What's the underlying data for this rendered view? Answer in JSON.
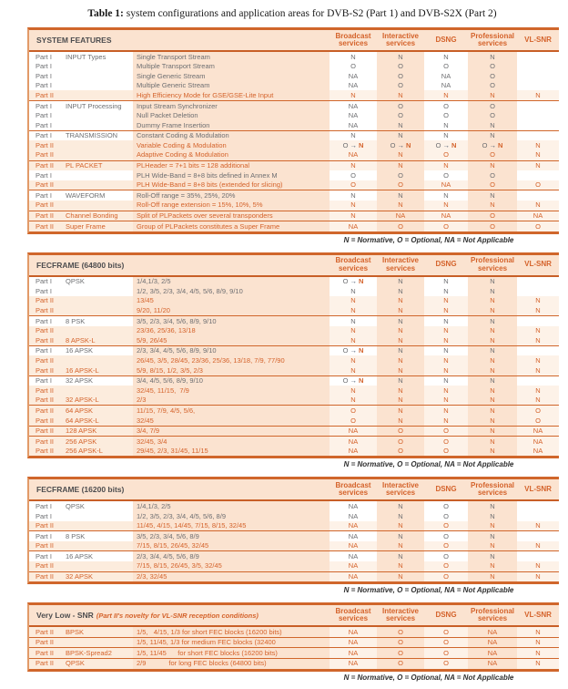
{
  "title": {
    "prefix": "Table 1:",
    "rest": " system configurations and application areas for DVB-S2 (Part 1) and DVB-S2X (Part 2)"
  },
  "legend_note": "N = Normative, O = Optional, NA = Not Applicable",
  "columns": [
    "Broadcast services",
    "Interactive services",
    "DSNG",
    "Professional services",
    "VL-SNR"
  ],
  "column_stripes": [
    false,
    true,
    false,
    true,
    false
  ],
  "colors": {
    "accent_orange": "#d4622a",
    "border_orange": "#d0662b",
    "peach_bg": "#fbe3d0",
    "part1_text_gray": "#6d6e71",
    "arrow_dark": "#44546a"
  },
  "tables": [
    {
      "title": "SYSTEM FEATURES",
      "title_note": "",
      "rows": [
        {
          "part": "Part I",
          "cat": "INPUT Types",
          "desc": "Single Transport Stream",
          "vals": [
            "N",
            "N",
            "N",
            "N",
            ""
          ],
          "sep": false
        },
        {
          "part": "Part I",
          "cat": "",
          "desc": "Multiple Transport Stream",
          "vals": [
            "O",
            "O",
            "O",
            "O",
            ""
          ],
          "sep": false
        },
        {
          "part": "Part I",
          "cat": "",
          "desc": "Single Generic Stream",
          "vals": [
            "NA",
            "O",
            "NA",
            "O",
            ""
          ],
          "sep": false
        },
        {
          "part": "Part I",
          "cat": "",
          "desc": "Multiple Generic Stream",
          "vals": [
            "NA",
            "O",
            "NA",
            "O",
            ""
          ],
          "sep": false
        },
        {
          "part": "Part II",
          "cat": "",
          "desc": "High Efficiency Mode for GSE/GSE-Lite Input",
          "vals": [
            "N",
            "N",
            "N",
            "N",
            "N"
          ],
          "sep": true
        },
        {
          "part": "Part I",
          "cat": "INPUT Processing",
          "desc": "Input Stream Synchronizer",
          "vals": [
            "NA",
            "O",
            "O",
            "O",
            ""
          ],
          "sep": false
        },
        {
          "part": "Part I",
          "cat": "",
          "desc": "Null Packet Deletion",
          "vals": [
            "NA",
            "O",
            "O",
            "O",
            ""
          ],
          "sep": false
        },
        {
          "part": "Part I",
          "cat": "",
          "desc": "Dummy Frame Insertion",
          "vals": [
            "NA",
            "N",
            "N",
            "N",
            ""
          ],
          "sep": true
        },
        {
          "part": "Part I",
          "cat": "TRANSMISSION",
          "desc": "Constant Coding & Modulation",
          "vals": [
            "N",
            "N",
            "N",
            "N",
            ""
          ],
          "sep": false
        },
        {
          "part": "Part II",
          "cat": "",
          "desc": "Variable Coding & Modulation",
          "vals": [
            "O → N",
            "O → N",
            "O → N",
            "O → N",
            "N"
          ],
          "sep": false
        },
        {
          "part": "Part II",
          "cat": "",
          "desc": "Adaptive Coding & Modulation",
          "vals": [
            "NA",
            "N",
            "O",
            "O",
            "N"
          ],
          "sep": true
        },
        {
          "part": "Part II",
          "cat": "PL PACKET",
          "desc": "PLHeader = 7+1 bits = 128 additional",
          "vals": [
            "N",
            "N",
            "N",
            "N",
            "N"
          ],
          "sep": false
        },
        {
          "part": "Part I",
          "cat": "",
          "desc": "PLH Wide-Band = 8+8 bits defined in Annex M",
          "vals": [
            "O",
            "O",
            "O",
            "O",
            ""
          ],
          "sep": false
        },
        {
          "part": "Part II",
          "cat": "",
          "desc": "PLH Wide-Band = 8+8 bits (extended for slicing)",
          "vals": [
            "O",
            "O",
            "NA",
            "O",
            "O"
          ],
          "sep": true
        },
        {
          "part": "Part I",
          "cat": "WAVEFORM",
          "desc": "Roll-Off range = 35%, 25%, 20%",
          "vals": [
            "N",
            "N",
            "N",
            "N",
            ""
          ],
          "sep": false
        },
        {
          "part": "Part II",
          "cat": "",
          "desc": "Roll-Off range extension = 15%, 10%, 5%",
          "vals": [
            "N",
            "N",
            "N",
            "N",
            "N"
          ],
          "sep": true
        },
        {
          "part": "Part II",
          "cat": "Channel Bonding",
          "desc": "Split of PLPackets over several transponders",
          "vals": [
            "N",
            "NA",
            "NA",
            "O",
            "NA"
          ],
          "sep": true
        },
        {
          "part": "Part II",
          "cat": "Super Frame",
          "desc": "Group of PLPackets constitutes a Super Frame",
          "vals": [
            "NA",
            "O",
            "O",
            "O",
            "O"
          ],
          "sep": false
        }
      ]
    },
    {
      "title": "FECFRAME (64800 bits)",
      "title_note": "",
      "rows": [
        {
          "part": "Part I",
          "cat": "QPSK",
          "desc": "1/4,1/3, 2/5",
          "vals": [
            "O → N",
            "N",
            "N",
            "N",
            ""
          ],
          "sep": false
        },
        {
          "part": "Part I",
          "cat": "",
          "desc": "1/2, 3/5, 2/3, 3/4, 4/5, 5/6, 8/9, 9/10",
          "vals": [
            "N",
            "N",
            "N",
            "N",
            ""
          ],
          "sep": false
        },
        {
          "part": "Part II",
          "cat": "",
          "desc": "13/45",
          "vals": [
            "N",
            "N",
            "N",
            "N",
            "N"
          ],
          "sep": false
        },
        {
          "part": "Part II",
          "cat": "",
          "desc": "9/20, 11/20",
          "vals": [
            "N",
            "N",
            "N",
            "N",
            "N"
          ],
          "sep": true
        },
        {
          "part": "Part I",
          "cat": "8 PSK",
          "desc": "3/5, 2/3, 3/4, 5/6, 8/9, 9/10",
          "vals": [
            "N",
            "N",
            "N",
            "N",
            ""
          ],
          "sep": false
        },
        {
          "part": "Part II",
          "cat": "",
          "desc": "23/36, 25/36, 13/18",
          "vals": [
            "N",
            "N",
            "N",
            "N",
            "N"
          ],
          "sep": false
        },
        {
          "part": "Part II",
          "cat": "8 APSK-L",
          "desc": "5/9, 26/45",
          "vals": [
            "N",
            "N",
            "N",
            "N",
            "N"
          ],
          "sep": true
        },
        {
          "part": "Part I",
          "cat": "16 APSK",
          "desc": "2/3, 3/4, 4/5, 5/6, 8/9, 9/10",
          "vals": [
            "O → N",
            "N",
            "N",
            "N",
            ""
          ],
          "sep": false
        },
        {
          "part": "Part II",
          "cat": "",
          "desc": "26/45, 3/5, 28/45, 23/36, 25/36, 13/18, 7/9, 77/90",
          "vals": [
            "N",
            "N",
            "N",
            "N",
            "N"
          ],
          "sep": false
        },
        {
          "part": "Part II",
          "cat": "16 APSK-L",
          "desc": "5/9, 8/15, 1/2, 3/5, 2/3",
          "vals": [
            "N",
            "N",
            "N",
            "N",
            "N"
          ],
          "sep": true
        },
        {
          "part": "Part I",
          "cat": "32 APSK",
          "desc": "3/4, 4/5, 5/6, 8/9, 9/10",
          "vals": [
            "O → N",
            "N",
            "N",
            "N",
            ""
          ],
          "sep": false
        },
        {
          "part": "Part II",
          "cat": "",
          "desc": "32/45, 11/15,  7/9",
          "vals": [
            "N",
            "N",
            "N",
            "N",
            "N"
          ],
          "sep": false
        },
        {
          "part": "Part II",
          "cat": "32 APSK-L",
          "desc": "2/3",
          "vals": [
            "N",
            "N",
            "N",
            "N",
            "N"
          ],
          "sep": true
        },
        {
          "part": "Part II",
          "cat": "64 APSK",
          "desc": "11/15, 7/9, 4/5, 5/6,",
          "vals": [
            "O",
            "N",
            "N",
            "N",
            "O"
          ],
          "sep": false
        },
        {
          "part": "Part II",
          "cat": "64 APSK-L",
          "desc": "32/45",
          "vals": [
            "O",
            "N",
            "N",
            "N",
            "O"
          ],
          "sep": true
        },
        {
          "part": "Part II",
          "cat": "128 APSK",
          "desc": "3/4, 7/9",
          "vals": [
            "NA",
            "O",
            "O",
            "N",
            "NA"
          ],
          "sep": true
        },
        {
          "part": "Part II",
          "cat": "256 APSK",
          "desc": "32/45, 3/4",
          "vals": [
            "NA",
            "O",
            "O",
            "N",
            "NA"
          ],
          "sep": false
        },
        {
          "part": "Part II",
          "cat": "256 APSK-L",
          "desc": "29/45, 2/3, 31/45, 11/15",
          "vals": [
            "NA",
            "O",
            "O",
            "N",
            "NA"
          ],
          "sep": false
        }
      ]
    },
    {
      "title": "FECFRAME (16200 bits)",
      "title_note": "",
      "rows": [
        {
          "part": "Part I",
          "cat": "QPSK",
          "desc": "1/4,1/3, 2/5",
          "vals": [
            "NA",
            "N",
            "O",
            "N",
            ""
          ],
          "sep": false
        },
        {
          "part": "Part I",
          "cat": "",
          "desc": "1/2, 3/5, 2/3, 3/4, 4/5, 5/6, 8/9",
          "vals": [
            "NA",
            "N",
            "O",
            "N",
            ""
          ],
          "sep": false
        },
        {
          "part": "Part II",
          "cat": "",
          "desc": "11/45, 4/15, 14/45, 7/15, 8/15, 32/45",
          "vals": [
            "NA",
            "N",
            "O",
            "N",
            "N"
          ],
          "sep": true
        },
        {
          "part": "Part I",
          "cat": "8 PSK",
          "desc": "3/5, 2/3, 3/4, 5/6, 8/9",
          "vals": [
            "NA",
            "N",
            "O",
            "N",
            ""
          ],
          "sep": false
        },
        {
          "part": "Part II",
          "cat": "",
          "desc": "7/15, 8/15, 26/45, 32/45",
          "vals": [
            "NA",
            "N",
            "O",
            "N",
            "N"
          ],
          "sep": true
        },
        {
          "part": "Part I",
          "cat": "16 APSK",
          "desc": "2/3, 3/4, 4/5, 5/6, 8/9",
          "vals": [
            "NA",
            "N",
            "O",
            "N",
            ""
          ],
          "sep": false
        },
        {
          "part": "Part II",
          "cat": "",
          "desc": "7/15, 8/15, 26/45, 3/5, 32/45",
          "vals": [
            "NA",
            "N",
            "O",
            "N",
            "N"
          ],
          "sep": true
        },
        {
          "part": "Part II",
          "cat": "32 APSK",
          "desc": "2/3, 32/45",
          "vals": [
            "NA",
            "N",
            "O",
            "N",
            "N"
          ],
          "sep": false
        }
      ]
    },
    {
      "title": "Very Low - SNR",
      "title_note": "(Part II's novelty for VL-SNR reception conditions)",
      "rows": [
        {
          "part": "Part II",
          "cat": "BPSK",
          "desc": "1/5,   4/15, 1/3 for short FEC blocks (16200 bits)",
          "vals": [
            "NA",
            "O",
            "O",
            "NA",
            "N"
          ],
          "sep": true
        },
        {
          "part": "Part II",
          "cat": "",
          "desc": "1/5, 11/45, 1/3 for medium FEC blocks (32400",
          "vals": [
            "NA",
            "O",
            "O",
            "NA",
            "N"
          ],
          "sep": true
        },
        {
          "part": "Part II",
          "cat": "BPSK-Spread2",
          "desc": "1/5, 11/45      for short FEC blocks (16200 bits)",
          "vals": [
            "NA",
            "O",
            "O",
            "NA",
            "N"
          ],
          "sep": true
        },
        {
          "part": "Part II",
          "cat": "QPSK",
          "desc": "2/9            for long FEC blocks (64800 bits)",
          "vals": [
            "NA",
            "O",
            "O",
            "NA",
            "N"
          ],
          "sep": false
        }
      ]
    }
  ]
}
